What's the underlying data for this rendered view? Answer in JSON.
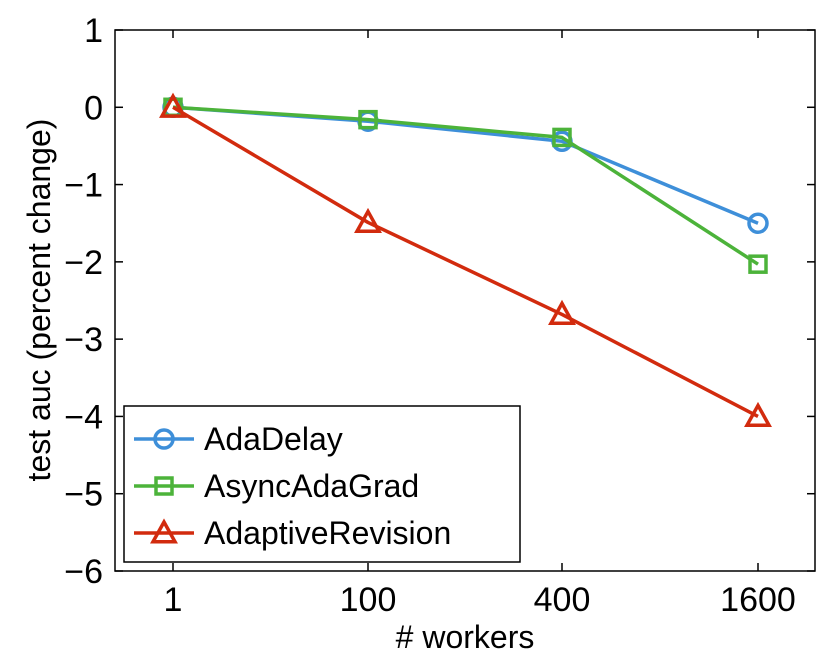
{
  "chart_data": {
    "type": "line",
    "xlabel": "# workers",
    "ylabel": "test auc (percent change)",
    "categories": [
      "1",
      "100",
      "400",
      "1600"
    ],
    "ylim": [
      -6,
      1
    ],
    "yticks": [
      1,
      0,
      -1,
      -2,
      -3,
      -4,
      -5,
      -6
    ],
    "ytick_labels": [
      "1",
      "0",
      "−1",
      "−2",
      "−3",
      "−4",
      "−5",
      "−6"
    ],
    "grid": false,
    "legend_position": "bottom-left",
    "series": [
      {
        "name": "AdaDelay",
        "color": "#3e8fd9",
        "marker": "circle",
        "values": [
          0,
          -0.18,
          -0.44,
          -1.5
        ]
      },
      {
        "name": "AsyncAdaGrad",
        "color": "#4cb33a",
        "marker": "square",
        "values": [
          0,
          -0.16,
          -0.39,
          -2.03
        ]
      },
      {
        "name": "AdaptiveRevision",
        "color": "#d22b0e",
        "marker": "triangle",
        "values": [
          0,
          -1.49,
          -2.68,
          -4.0
        ]
      }
    ]
  }
}
